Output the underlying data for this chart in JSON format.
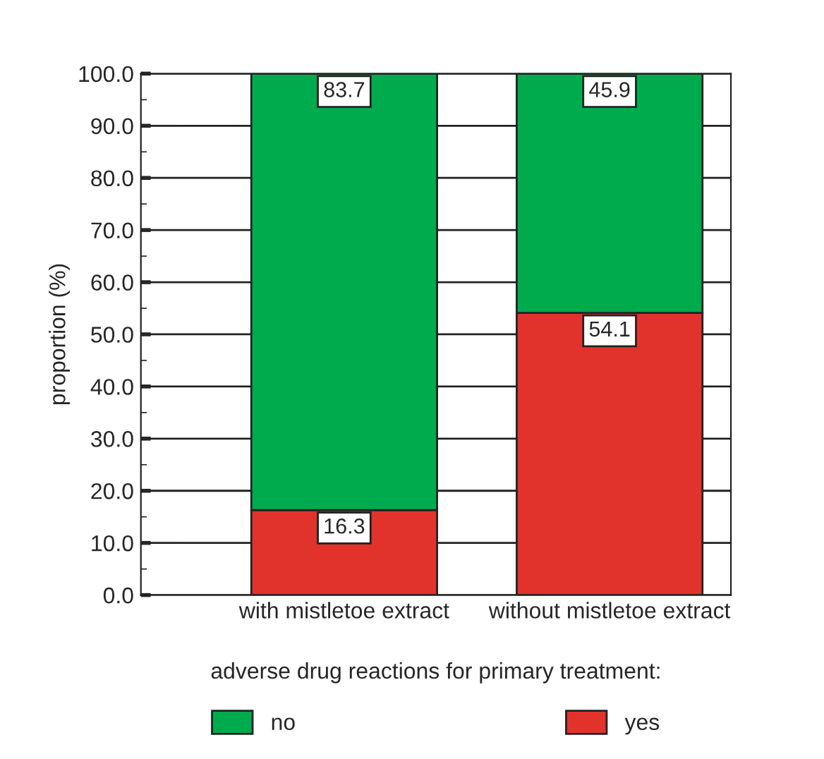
{
  "chart_data": {
    "type": "bar",
    "stacked": true,
    "ylabel": "proportion (%)",
    "legend_title": "adverse drug reactions for primary treatment:",
    "categories": [
      "with mistletoe extract",
      "without mistletoe extract"
    ],
    "series": [
      {
        "name": "yes",
        "color": "#e1332c",
        "values": [
          16.3,
          54.1
        ]
      },
      {
        "name": "no",
        "color": "#00ab4e",
        "values": [
          83.7,
          45.9
        ]
      }
    ],
    "ylim": [
      0,
      100
    ],
    "yticks": [
      {
        "value": 0,
        "label": "0.0"
      },
      {
        "value": 10,
        "label": "10.0"
      },
      {
        "value": 20,
        "label": "20.0"
      },
      {
        "value": 30,
        "label": "30.0"
      },
      {
        "value": 40,
        "label": "40.0"
      },
      {
        "value": 50,
        "label": "50.0"
      },
      {
        "value": 60,
        "label": "60.0"
      },
      {
        "value": 70,
        "label": "70.0"
      },
      {
        "value": 80,
        "label": "80.0"
      },
      {
        "value": 90,
        "label": "90.0"
      },
      {
        "value": 100,
        "label": "100.0"
      }
    ],
    "grid": "y",
    "legend": "bottom",
    "data_labels": true
  }
}
